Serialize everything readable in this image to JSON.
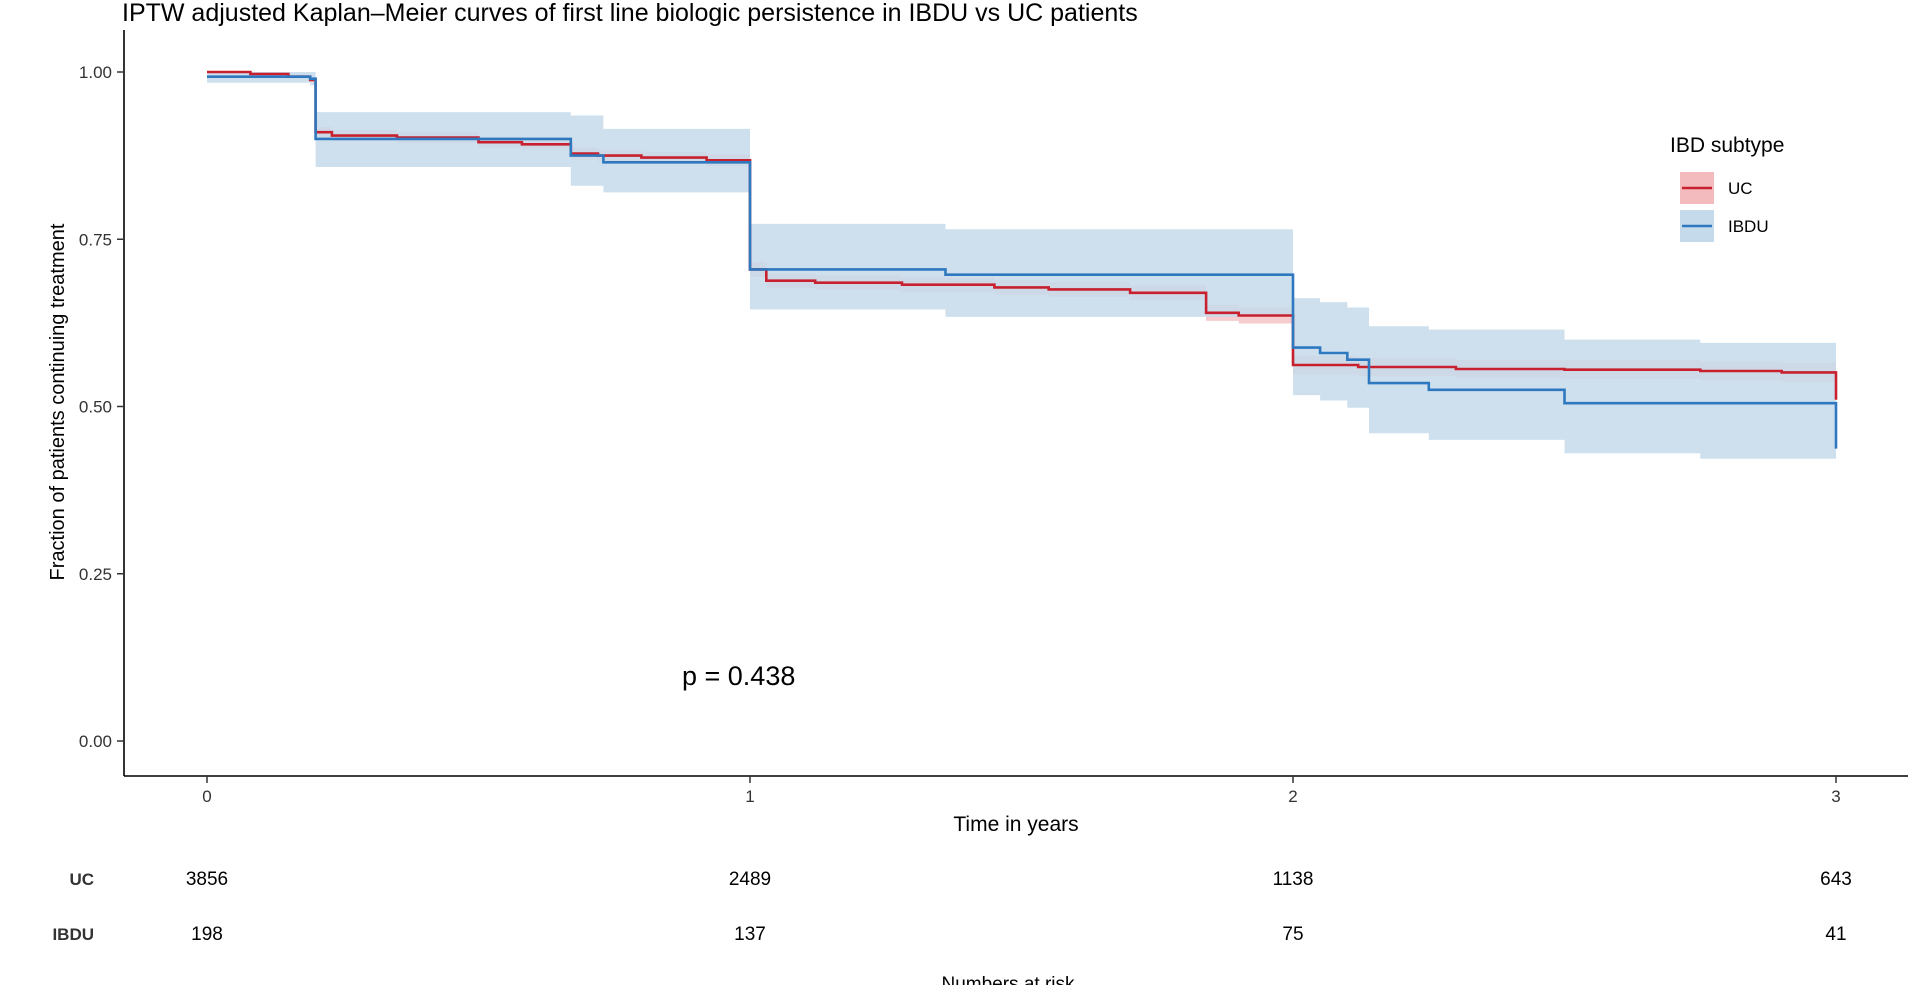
{
  "chart_data": {
    "type": "line",
    "subtype": "kaplan-meier step curves with confidence bands",
    "title": "IPTW adjusted Kaplan–Meier curves of first line biologic persistence in IBDU vs UC patients",
    "xlabel": "Time in years",
    "ylabel": "Fraction of patients continuing treatment",
    "xlim": [
      -0.15,
      3.13
    ],
    "ylim": [
      -0.05,
      1.03
    ],
    "x_ticks": [
      "0",
      "1",
      "2",
      "3"
    ],
    "y_ticks": [
      "0.00",
      "0.25",
      "0.50",
      "0.75",
      "1.00"
    ],
    "grid": false,
    "annotation": "p = 0.438",
    "legend": {
      "title": "IBD subtype",
      "placement": "right",
      "entries": [
        {
          "label": "UC",
          "color": "#C8202F",
          "band_color": "#F4BBBF"
        },
        {
          "label": "IBDU",
          "color": "#2E78BF",
          "band_color": "#C5DAEB"
        }
      ]
    },
    "series": [
      {
        "name": "UC",
        "color": "#C8202F",
        "band_color": "#F4BBBF",
        "band_opacity": 0.75,
        "steps": [
          [
            0.0,
            1.0,
            1.0,
            1.0
          ],
          [
            0.08,
            0.997,
            1.0,
            0.994
          ],
          [
            0.15,
            0.993,
            0.997,
            0.99
          ],
          [
            0.19,
            0.988,
            0.992,
            0.984
          ],
          [
            0.2,
            0.91,
            0.918,
            0.902
          ],
          [
            0.23,
            0.905,
            0.913,
            0.897
          ],
          [
            0.35,
            0.902,
            0.91,
            0.894
          ],
          [
            0.5,
            0.895,
            0.903,
            0.887
          ],
          [
            0.58,
            0.892,
            0.9,
            0.884
          ],
          [
            0.67,
            0.878,
            0.887,
            0.869
          ],
          [
            0.72,
            0.875,
            0.884,
            0.866
          ],
          [
            0.8,
            0.872,
            0.881,
            0.863
          ],
          [
            0.92,
            0.868,
            0.877,
            0.859
          ],
          [
            1.0,
            0.705,
            0.716,
            0.694
          ],
          [
            1.03,
            0.688,
            0.699,
            0.677
          ],
          [
            1.12,
            0.685,
            0.696,
            0.674
          ],
          [
            1.28,
            0.682,
            0.693,
            0.671
          ],
          [
            1.45,
            0.678,
            0.689,
            0.667
          ],
          [
            1.55,
            0.675,
            0.686,
            0.664
          ],
          [
            1.7,
            0.67,
            0.681,
            0.659
          ],
          [
            1.84,
            0.64,
            0.652,
            0.628
          ],
          [
            1.9,
            0.636,
            0.648,
            0.624
          ],
          [
            2.0,
            0.562,
            0.576,
            0.548
          ],
          [
            2.12,
            0.559,
            0.573,
            0.545
          ],
          [
            2.3,
            0.556,
            0.57,
            0.542
          ],
          [
            2.5,
            0.555,
            0.569,
            0.541
          ],
          [
            2.75,
            0.553,
            0.567,
            0.539
          ],
          [
            2.9,
            0.551,
            0.565,
            0.537
          ],
          [
            3.0,
            0.51,
            0.524,
            0.496
          ]
        ]
      },
      {
        "name": "IBDU",
        "color": "#2E78BF",
        "band_color": "#C5DAEB",
        "band_opacity": 0.85,
        "steps": [
          [
            0.0,
            0.993,
            1.0,
            0.984
          ],
          [
            0.19,
            0.99,
            1.0,
            0.98
          ],
          [
            0.2,
            0.9,
            0.94,
            0.858
          ],
          [
            0.67,
            0.875,
            0.935,
            0.83
          ],
          [
            0.73,
            0.865,
            0.915,
            0.82
          ],
          [
            1.0,
            0.705,
            0.773,
            0.645
          ],
          [
            1.36,
            0.697,
            0.765,
            0.634
          ],
          [
            2.0,
            0.588,
            0.662,
            0.517
          ],
          [
            2.05,
            0.58,
            0.656,
            0.509
          ],
          [
            2.1,
            0.57,
            0.648,
            0.498
          ],
          [
            2.14,
            0.535,
            0.62,
            0.46
          ],
          [
            2.25,
            0.525,
            0.615,
            0.45
          ],
          [
            2.5,
            0.505,
            0.6,
            0.43
          ],
          [
            2.75,
            0.505,
            0.595,
            0.422
          ],
          [
            3.0,
            0.437,
            0.52,
            0.35
          ]
        ]
      }
    ]
  },
  "risk_table": {
    "label": "Numbers at risk",
    "times": [
      0,
      1,
      2,
      3
    ],
    "rows": [
      {
        "name": "UC",
        "values": [
          "3856",
          "2489",
          "1138",
          "643"
        ]
      },
      {
        "name": "IBDU",
        "values": [
          "198",
          "137",
          "75",
          "41"
        ]
      }
    ]
  }
}
